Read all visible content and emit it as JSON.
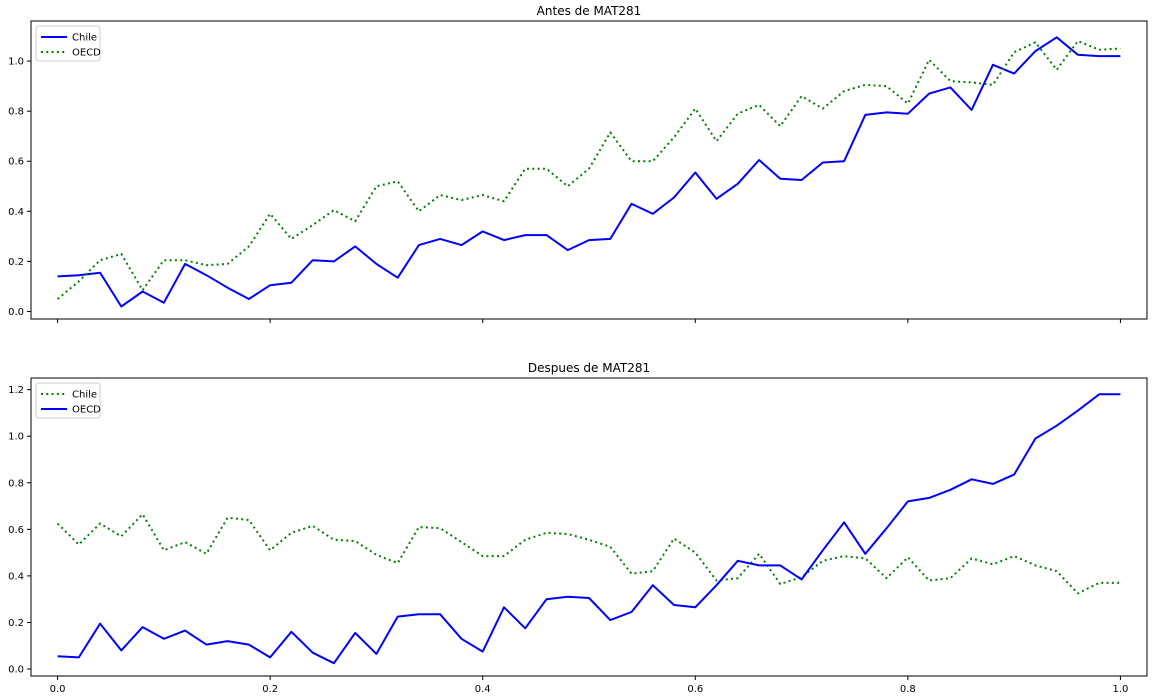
{
  "colors": {
    "blue": "#0000ff",
    "green": "#008000"
  },
  "chart_data": [
    {
      "type": "line",
      "title": "Antes de MAT281",
      "xlabel": "",
      "ylabel": "",
      "xlim": [
        -0.025,
        1.025
      ],
      "ylim": [
        -0.03,
        1.16
      ],
      "xticks": [
        0.0,
        0.2,
        0.4,
        0.6,
        0.8,
        1.0
      ],
      "xtick_labels": [
        "",
        "",
        "",
        "",
        "",
        ""
      ],
      "yticks": [
        0.0,
        0.2,
        0.4,
        0.6,
        0.8,
        1.0
      ],
      "ytick_labels": [
        "0.0",
        "0.2",
        "0.4",
        "0.6",
        "0.8",
        "1.0"
      ],
      "legend_position": "top-left",
      "x": [
        0.0,
        0.02,
        0.04,
        0.06,
        0.08,
        0.1,
        0.12,
        0.14,
        0.16,
        0.18,
        0.2,
        0.22,
        0.24,
        0.26,
        0.28,
        0.3,
        0.32,
        0.34,
        0.36,
        0.38,
        0.4,
        0.42,
        0.44,
        0.46,
        0.48,
        0.5,
        0.52,
        0.54,
        0.56,
        0.58,
        0.6,
        0.62,
        0.64,
        0.66,
        0.68,
        0.7,
        0.72,
        0.74,
        0.76,
        0.78,
        0.8,
        0.82,
        0.84,
        0.86,
        0.88,
        0.9,
        0.92,
        0.94,
        0.96,
        0.98,
        1.0
      ],
      "series": [
        {
          "name": "Chile",
          "style": "solid",
          "color": "blue",
          "values": [
            0.14,
            0.145,
            0.155,
            0.02,
            0.08,
            0.035,
            0.19,
            0.145,
            0.095,
            0.05,
            0.105,
            0.115,
            0.205,
            0.2,
            0.26,
            0.19,
            0.135,
            0.265,
            0.29,
            0.265,
            0.32,
            0.285,
            0.305,
            0.305,
            0.245,
            0.285,
            0.29,
            0.43,
            0.39,
            0.455,
            0.555,
            0.45,
            0.51,
            0.605,
            0.53,
            0.525,
            0.595,
            0.6,
            0.785,
            0.795,
            0.79,
            0.87,
            0.895,
            0.805,
            0.985,
            0.95,
            1.04,
            1.095,
            1.025,
            1.02,
            1.02
          ]
        },
        {
          "name": "OECD",
          "style": "dotted",
          "color": "green",
          "values": [
            0.05,
            0.12,
            0.205,
            0.23,
            0.085,
            0.205,
            0.205,
            0.185,
            0.19,
            0.26,
            0.39,
            0.29,
            0.345,
            0.405,
            0.36,
            0.5,
            0.52,
            0.4,
            0.465,
            0.445,
            0.465,
            0.44,
            0.57,
            0.57,
            0.5,
            0.57,
            0.715,
            0.6,
            0.6,
            0.695,
            0.81,
            0.68,
            0.79,
            0.825,
            0.74,
            0.86,
            0.81,
            0.88,
            0.905,
            0.9,
            0.83,
            1.005,
            0.92,
            0.915,
            0.905,
            1.035,
            1.075,
            0.965,
            1.08,
            1.045,
            1.05
          ]
        }
      ]
    },
    {
      "type": "line",
      "title": "Despues de MAT281",
      "xlabel": "",
      "ylabel": "",
      "xlim": [
        -0.025,
        1.025
      ],
      "ylim": [
        -0.03,
        1.25
      ],
      "xticks": [
        0.0,
        0.2,
        0.4,
        0.6,
        0.8,
        1.0
      ],
      "xtick_labels": [
        "0.0",
        "0.2",
        "0.4",
        "0.6",
        "0.8",
        "1.0"
      ],
      "yticks": [
        0.0,
        0.2,
        0.4,
        0.6,
        0.8,
        1.0,
        1.2
      ],
      "ytick_labels": [
        "0.0",
        "0.2",
        "0.4",
        "0.6",
        "0.8",
        "1.0",
        "1.2"
      ],
      "legend_position": "top-left",
      "x": [
        0.0,
        0.02,
        0.04,
        0.06,
        0.08,
        0.1,
        0.12,
        0.14,
        0.16,
        0.18,
        0.2,
        0.22,
        0.24,
        0.26,
        0.28,
        0.3,
        0.32,
        0.34,
        0.36,
        0.38,
        0.4,
        0.42,
        0.44,
        0.46,
        0.48,
        0.5,
        0.52,
        0.54,
        0.56,
        0.58,
        0.6,
        0.62,
        0.64,
        0.66,
        0.68,
        0.7,
        0.72,
        0.74,
        0.76,
        0.78,
        0.8,
        0.82,
        0.84,
        0.86,
        0.88,
        0.9,
        0.92,
        0.94,
        0.96,
        0.98,
        1.0
      ],
      "series": [
        {
          "name": "Chile",
          "style": "dotted",
          "color": "green",
          "values": [
            0.625,
            0.535,
            0.625,
            0.57,
            0.665,
            0.51,
            0.545,
            0.495,
            0.65,
            0.64,
            0.51,
            0.585,
            0.615,
            0.555,
            0.55,
            0.49,
            0.455,
            0.61,
            0.605,
            0.545,
            0.485,
            0.485,
            0.555,
            0.585,
            0.58,
            0.555,
            0.525,
            0.41,
            0.42,
            0.56,
            0.5,
            0.38,
            0.39,
            0.495,
            0.365,
            0.395,
            0.465,
            0.485,
            0.475,
            0.39,
            0.48,
            0.38,
            0.39,
            0.475,
            0.45,
            0.485,
            0.445,
            0.42,
            0.325,
            0.37,
            0.37
          ]
        },
        {
          "name": "OECD",
          "style": "solid",
          "color": "blue",
          "values": [
            0.055,
            0.05,
            0.195,
            0.08,
            0.18,
            0.13,
            0.165,
            0.105,
            0.12,
            0.105,
            0.05,
            0.16,
            0.07,
            0.025,
            0.155,
            0.065,
            0.225,
            0.235,
            0.235,
            0.13,
            0.075,
            0.265,
            0.175,
            0.3,
            0.31,
            0.305,
            0.21,
            0.245,
            0.36,
            0.275,
            0.265,
            0.36,
            0.465,
            0.445,
            0.445,
            0.385,
            0.51,
            0.63,
            0.495,
            0.605,
            0.72,
            0.735,
            0.77,
            0.815,
            0.795,
            0.835,
            0.99,
            1.045,
            1.11,
            1.18,
            1.18
          ]
        }
      ]
    }
  ]
}
